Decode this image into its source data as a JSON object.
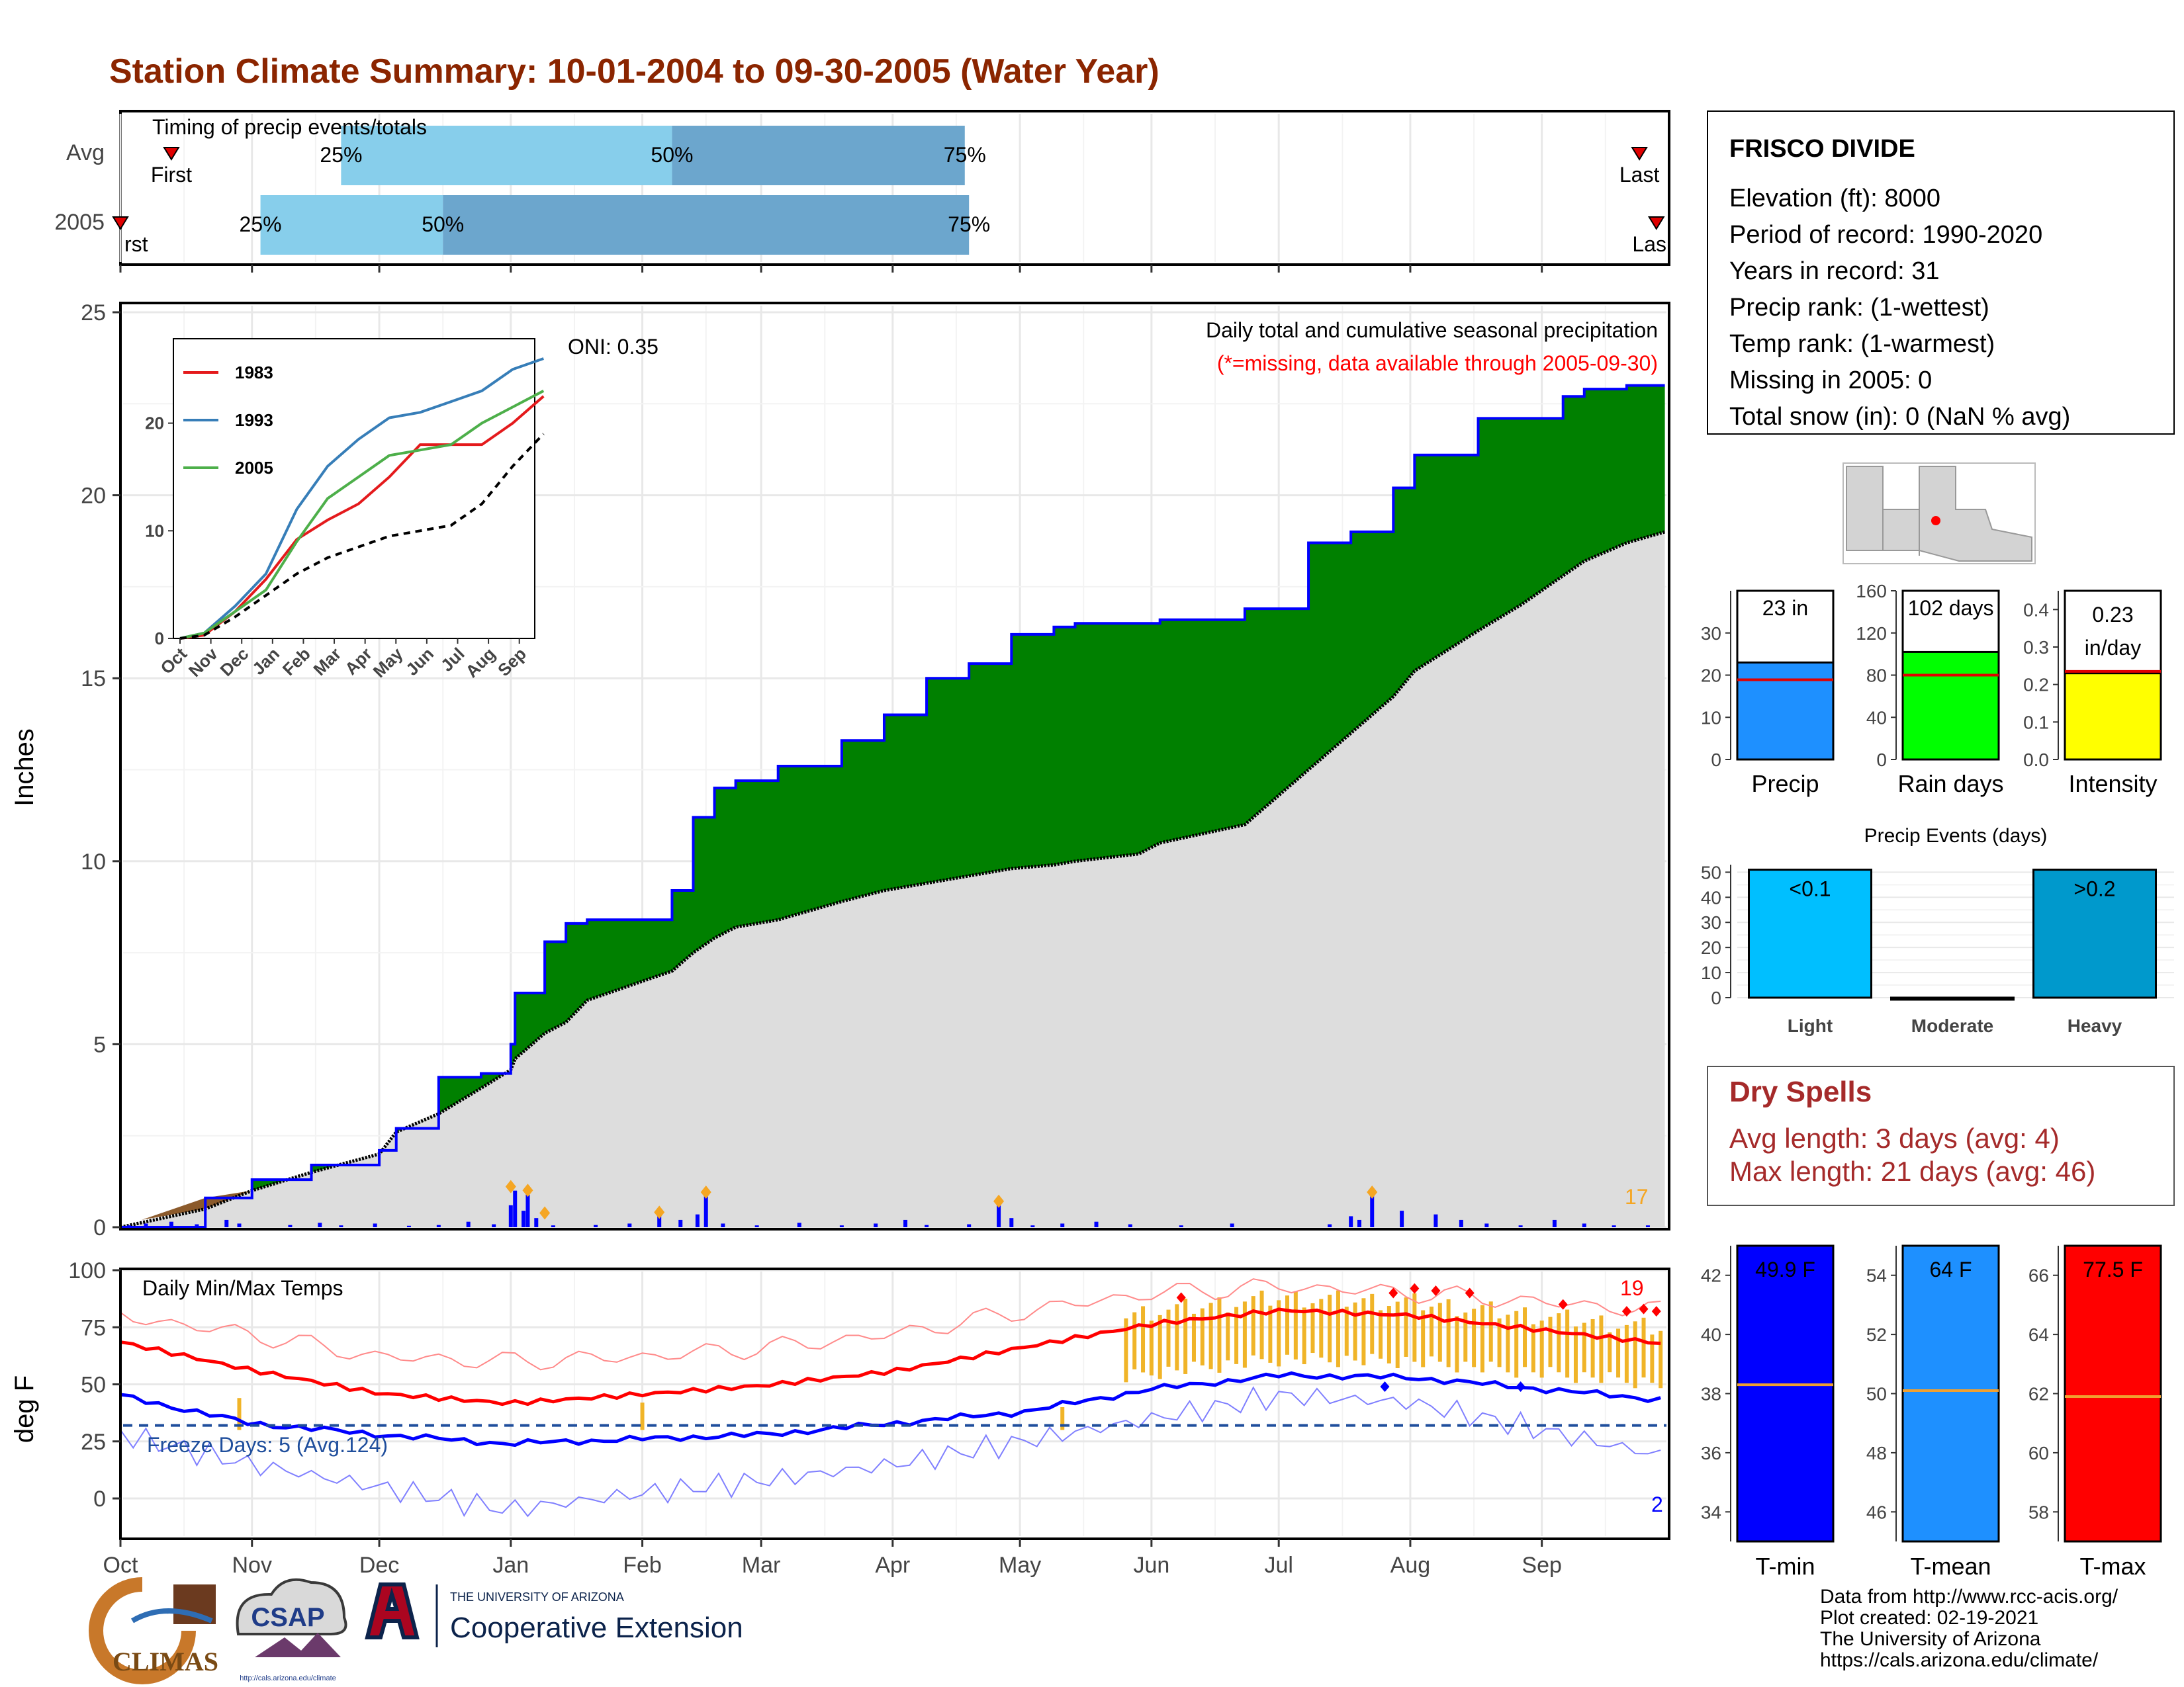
{
  "title": "Station Climate Summary: 10-01-2004 to 09-30-2005 (Water Year)",
  "colors": {
    "title": "#8B2500",
    "cumulative_fill": "#008000",
    "avg_fill": "#DDDDDD",
    "daily_bars": "#0000FF",
    "markers": "#F5A623",
    "quartile_light": "#87CEEB",
    "quartile_dark": "#6CA6CD",
    "tmax_line": "#FF0000",
    "tmin_line": "#0000FF",
    "range_bars": "#F0B428",
    "dry_spells": "#A52A2A"
  },
  "timing": {
    "title": "Timing of precip events/totals",
    "rows": [
      {
        "label": "Avg",
        "first": "First",
        "last": "Last",
        "p25": "25%",
        "p50": "50%",
        "p75": "75%"
      },
      {
        "label": "2005",
        "first": "rst",
        "last": "Las",
        "p25": "25%",
        "p50": "50%",
        "p75": "75%"
      }
    ]
  },
  "precip": {
    "ylabel": "Inches",
    "yticks": [
      "0",
      "5",
      "10",
      "15",
      "20",
      "25"
    ],
    "note1": "Daily total and cumulative seasonal precipitation",
    "note2": "(*=missing, data available through 2005-09-30)",
    "oni": "ONI: 0.35",
    "count_label": "17"
  },
  "inset": {
    "legend": [
      "1983",
      "1993",
      "2005"
    ],
    "legend_colors": [
      "#E41A1C",
      "#377EB8",
      "#4DAF4A"
    ],
    "yticks": [
      "0",
      "10",
      "20"
    ],
    "xticks": [
      "Oct",
      "Nov",
      "Dec",
      "Jan",
      "Feb",
      "Mar",
      "Apr",
      "May",
      "Jun",
      "Jul",
      "Aug",
      "Sep"
    ]
  },
  "temps": {
    "ylabel": "deg F",
    "title": "Daily Min/Max Temps",
    "yticks": [
      "0",
      "25",
      "50",
      "75",
      "100"
    ],
    "freeze_label": "Freeze Days: 5 (Avg.124)",
    "top_count": "19",
    "bottom_count": "2"
  },
  "months": [
    "Oct",
    "Nov",
    "Dec",
    "Jan",
    "Feb",
    "Mar",
    "Apr",
    "May",
    "Jun",
    "Jul",
    "Aug",
    "Sep"
  ],
  "info": {
    "station": "FRISCO DIVIDE",
    "lines": [
      "Elevation (ft): 8000",
      "Period of record: 1990-2020",
      "Years in record: 31",
      "Precip rank:  (1-wettest)",
      "Temp rank:  (1-warmest)",
      "Missing in 2005: 0",
      "Total snow (in): 0 (NaN % avg)"
    ]
  },
  "summary_bars": [
    {
      "label": "Precip",
      "value_label": "23 in",
      "color": "#1E90FF",
      "yticks": [
        "0",
        "10",
        "20",
        "30"
      ]
    },
    {
      "label": "Rain days",
      "value_label": "102 days",
      "color": "#00FF00",
      "yticks": [
        "0",
        "40",
        "80",
        "120",
        "160"
      ]
    },
    {
      "label": "Intensity",
      "value_label": "0.23",
      "value_label2": "in/day",
      "color": "#FFFF00",
      "yticks": [
        "0.0",
        "0.1",
        "0.2",
        "0.3",
        "0.4"
      ]
    }
  ],
  "events": {
    "title": "Precip Events (days)",
    "yticks": [
      "0",
      "10",
      "20",
      "30",
      "40",
      "50"
    ],
    "categories": [
      "Light",
      "Moderate",
      "Heavy"
    ],
    "bar_labels": [
      "<0.1",
      "",
      ">0.2"
    ]
  },
  "dry_spells": {
    "title": "Dry Spells",
    "avg": "Avg length: 3 days (avg: 4)",
    "max": "Max length: 21 days (avg: 46)"
  },
  "temp_bars": [
    {
      "label": "T-min",
      "value_label": "49.9 F",
      "color": "#0000FF",
      "yticks": [
        "34",
        "36",
        "38",
        "40",
        "42"
      ]
    },
    {
      "label": "T-mean",
      "value_label": "64 F",
      "color": "#1E90FF",
      "yticks": [
        "46",
        "48",
        "50",
        "52",
        "54"
      ]
    },
    {
      "label": "T-max",
      "value_label": "77.5 F",
      "color": "#FF0000",
      "yticks": [
        "58",
        "60",
        "62",
        "64",
        "66"
      ]
    }
  ],
  "footer": {
    "climas": "CLIMAS",
    "csap": "CSAP",
    "csap_url": "http://cals.arizona.edu/climate",
    "ua_small": "THE UNIVERSITY OF ARIZONA",
    "ua_big": "Cooperative Extension",
    "credits": [
      "Data from http://www.rcc-acis.org/",
      "Plot created: 02-19-2021",
      "The University of Arizona",
      "https://cals.arizona.edu/climate/"
    ]
  },
  "chart_data": [
    {
      "type": "bar",
      "title": "Timing of precip events/totals",
      "categories": [
        "Avg",
        "2005"
      ],
      "series": [
        {
          "name": "25%",
          "values": [
            52,
            33
          ]
        },
        {
          "name": "50%",
          "values": [
            130,
            76
          ]
        },
        {
          "name": "75%",
          "values": [
            199,
            200
          ]
        },
        {
          "name": "First",
          "values": [
            12,
            0
          ]
        },
        {
          "name": "Last",
          "values": [
            358,
            362
          ]
        }
      ]
    },
    {
      "type": "area",
      "title": "Daily total and cumulative seasonal precipitation",
      "ylabel": "Inches",
      "ylim": [
        0,
        25
      ],
      "x": [
        0,
        20,
        31,
        45,
        61,
        65,
        75,
        85,
        92,
        93,
        100,
        105,
        110,
        130,
        135,
        140,
        145,
        155,
        170,
        180,
        190,
        200,
        210,
        220,
        225,
        240,
        245,
        265,
        280,
        290,
        300,
        305,
        320,
        330,
        340,
        345,
        355,
        364
      ],
      "series": [
        {
          "name": "2005",
          "values": [
            0,
            0.8,
            1.3,
            1.7,
            2.1,
            2.7,
            4.1,
            4.2,
            5.0,
            6.4,
            7.8,
            8.3,
            8.4,
            9.2,
            11.2,
            12.0,
            12.2,
            12.6,
            13.3,
            14.0,
            15.0,
            15.4,
            16.2,
            16.4,
            16.5,
            16.5,
            16.6,
            16.9,
            18.7,
            19.0,
            20.2,
            21.1,
            22.1,
            22.1,
            22.7,
            22.9,
            23.0,
            23.0
          ]
        },
        {
          "name": "Average",
          "values": [
            0,
            0.5,
            1.0,
            1.5,
            2.0,
            2.6,
            3.1,
            3.8,
            4.3,
            4.6,
            5.3,
            5.6,
            6.2,
            7.0,
            7.5,
            7.9,
            8.2,
            8.4,
            8.9,
            9.2,
            9.4,
            9.6,
            9.8,
            9.9,
            10.0,
            10.2,
            10.5,
            11.0,
            12.5,
            13.5,
            14.5,
            15.2,
            16.3,
            17.0,
            17.8,
            18.2,
            18.7,
            19.0
          ]
        }
      ]
    },
    {
      "type": "line",
      "title": "",
      "ylim": [
        0,
        25
      ],
      "categories": [
        "Oct",
        "Nov",
        "Dec",
        "Jan",
        "Feb",
        "Mar",
        "Apr",
        "May",
        "Jun",
        "Jul",
        "Aug",
        "Sep"
      ],
      "series": [
        {
          "name": "1983",
          "values": [
            0.3,
            2.5,
            5.5,
            9.2,
            11.0,
            12.5,
            15.0,
            18.0,
            18.0,
            18.0,
            20.0,
            22.5
          ]
        },
        {
          "name": "1993",
          "values": [
            0.5,
            3.0,
            6.0,
            12.0,
            16.0,
            18.5,
            20.5,
            21.0,
            22.0,
            23.0,
            25.0,
            26.0
          ]
        },
        {
          "name": "2005",
          "values": [
            0.5,
            2.5,
            4.5,
            9.0,
            13.0,
            15.0,
            17.0,
            17.5,
            18.0,
            20.0,
            21.5,
            23.0
          ]
        },
        {
          "name": "Average",
          "values": [
            0.3,
            2.0,
            4.0,
            6.0,
            7.5,
            8.5,
            9.5,
            10.0,
            10.5,
            12.5,
            16.0,
            19.0
          ]
        }
      ]
    },
    {
      "type": "line",
      "title": "Daily Min/Max Temps",
      "ylabel": "deg F",
      "ylim": [
        -15,
        100
      ],
      "categories": [
        "Oct",
        "Nov",
        "Dec",
        "Jan",
        "Feb",
        "Mar",
        "Apr",
        "May",
        "Jun",
        "Jul",
        "Aug",
        "Sep"
      ],
      "series": [
        {
          "name": "Avg max",
          "values": [
            68,
            56,
            46,
            42,
            46,
            50,
            56,
            66,
            76,
            82,
            80,
            74
          ]
        },
        {
          "name": "Avg min",
          "values": [
            45,
            33,
            28,
            24,
            26,
            28,
            33,
            38,
            48,
            54,
            53,
            48
          ]
        },
        {
          "name": "Record max",
          "values": [
            80,
            72,
            62,
            60,
            62,
            66,
            72,
            82,
            90,
            93,
            90,
            86
          ]
        },
        {
          "name": "Record min",
          "values": [
            28,
            15,
            5,
            -5,
            2,
            8,
            15,
            25,
            35,
            45,
            42,
            30
          ]
        }
      ]
    },
    {
      "type": "bar",
      "categories": [
        "Precip",
        "Rain days",
        "Intensity"
      ],
      "series": [
        {
          "name": "2005",
          "values": [
            23,
            102,
            0.23
          ]
        },
        {
          "name": "Average",
          "values": [
            18.9,
            80,
            0.235
          ]
        }
      ]
    },
    {
      "type": "bar",
      "title": "Precip Events (days)",
      "categories": [
        "Light",
        "Moderate",
        "Heavy"
      ],
      "values": [
        51,
        0,
        51
      ]
    },
    {
      "type": "bar",
      "categories": [
        "T-min",
        "T-mean",
        "T-max"
      ],
      "series": [
        {
          "name": "2005",
          "values": [
            49.9,
            64,
            77.5
          ]
        },
        {
          "name": "Average",
          "values": [
            38.3,
            50.1,
            61.9
          ]
        }
      ]
    }
  ]
}
